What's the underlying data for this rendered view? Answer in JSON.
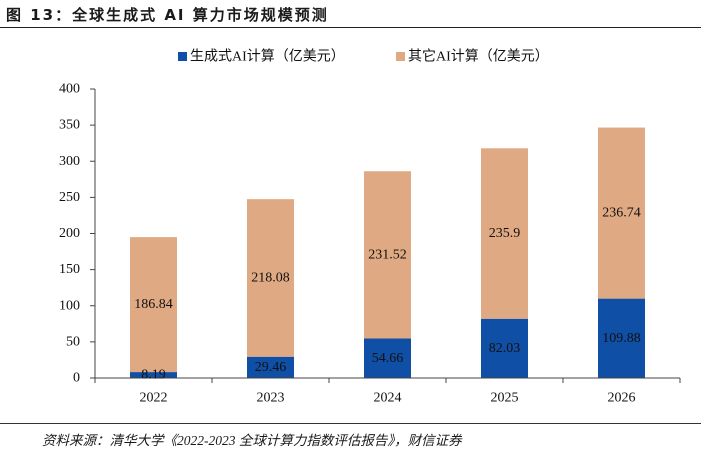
{
  "source": "资料来源：清华大学《2022-2023 全球计算力指数评估报告》，财信证券",
  "chart_data": {
    "type": "bar",
    "stacked": true,
    "title": "图 13：全球生成式 AI 算力市场规模预测",
    "categories": [
      "2022",
      "2023",
      "2024",
      "2025",
      "2026"
    ],
    "series": [
      {
        "name": "生成式AI计算（亿美元）",
        "values": [
          8.19,
          29.46,
          54.66,
          82.03,
          109.88
        ],
        "color": "#0F4FA6"
      },
      {
        "name": "其它AI计算（亿美元）",
        "values": [
          186.84,
          218.08,
          231.52,
          235.9,
          236.74
        ],
        "color": "#DFAA83"
      }
    ],
    "ylim": [
      0,
      400
    ],
    "yticks": [
      0,
      50,
      100,
      150,
      200,
      250,
      300,
      350,
      400
    ],
    "grid": false,
    "legend": "top-center",
    "data_labels": true
  }
}
